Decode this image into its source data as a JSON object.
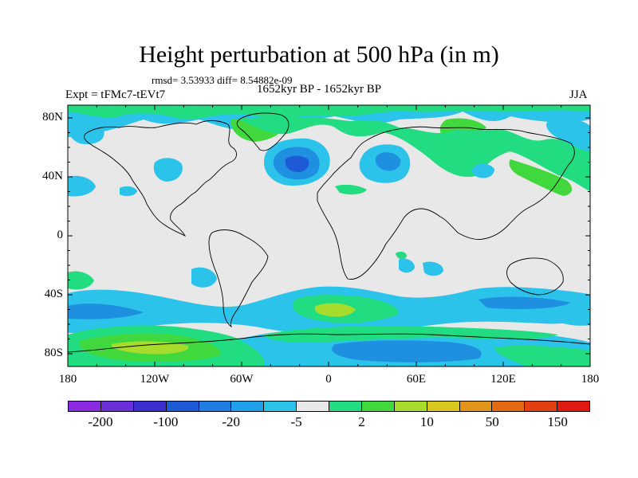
{
  "title": "Height perturbation at 500 hPa (in m)",
  "stats": "rmsd= 3.53933 diff= 8.54882e-09",
  "left_subtitle": "Expt = tFMc7-tEVt7",
  "center_subtitle": "1652kyr BP - 1652kyr BP",
  "right_subtitle": "JJA",
  "axes": {
    "lat_labels": [
      "80N",
      "40N",
      "0",
      "40S",
      "80S"
    ],
    "lon_labels": [
      "180",
      "120W",
      "60W",
      "0",
      "60E",
      "120E",
      "180"
    ]
  },
  "colorbar": {
    "colors": [
      "#8a2be2",
      "#6a2fd8",
      "#3c2fd0",
      "#1f5ad6",
      "#1e7de0",
      "#1fa0e8",
      "#2cc3ea",
      "#e8e8e8",
      "#22dc82",
      "#40d83c",
      "#a8dc2c",
      "#d8c81e",
      "#e09418",
      "#e26a10",
      "#e24010",
      "#e01a10"
    ],
    "labels": [
      "-200",
      "-100",
      "-20",
      "-5",
      "2",
      "10",
      "50",
      "150"
    ]
  },
  "colors": {
    "background_field": "#e8e8e8",
    "light_blue": "#2cc3ea",
    "blue": "#1f8fe0",
    "dark_blue": "#1f5ad6",
    "teal_green": "#22dc82",
    "green": "#40d83c",
    "yellow_green": "#a8dc2c"
  }
}
